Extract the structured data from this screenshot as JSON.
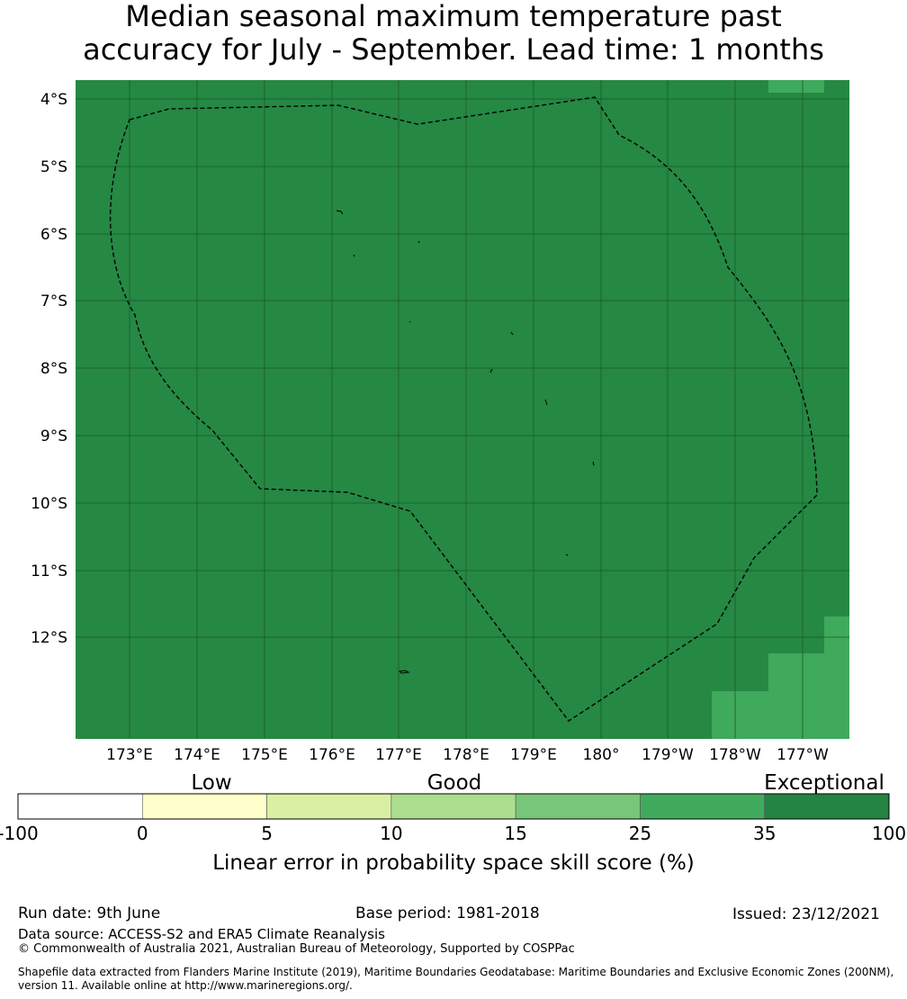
{
  "title": {
    "line1": "Median seasonal maximum temperature past",
    "line2": "accuracy for July - September. Lead time: 1 months"
  },
  "map": {
    "background_color": "#258843",
    "lat_labels": [
      "4°S",
      "5°S",
      "6°S",
      "7°S",
      "8°S",
      "9°S",
      "10°S",
      "11°S",
      "12°S"
    ],
    "lon_labels": [
      "173°E",
      "174°E",
      "175°E",
      "176°E",
      "177°E",
      "178°E",
      "179°E",
      "180°",
      "179°W",
      "178°W",
      "177°W"
    ],
    "boundary_style": "dashed",
    "lighter_cells_color": "#3fa95c"
  },
  "colorbar": {
    "categories": [
      "Low",
      "Good",
      "Exceptional"
    ],
    "ticks": [
      "-100",
      "0",
      "5",
      "10",
      "15",
      "25",
      "35",
      "100"
    ],
    "colors": [
      "#ffffff",
      "#ffffcc",
      "#d9f0a3",
      "#addd8e",
      "#78c679",
      "#41ab5d",
      "#238443"
    ],
    "label": "Linear error in probability space skill score (%)"
  },
  "footer": {
    "run_date": "Run date: 9th June",
    "base_period": "Base period: 1981-2018",
    "issued": "Issued: 23/12/2021",
    "data_source": "Data source: ACCESS-S2 and ERA5 Climate Reanalysis",
    "copyright": "© Commonwealth of Australia 2021, Australian Bureau of Meteorology, Supported by COSPPac",
    "shapefile": "Shapefile data extracted from Flanders Marine Institute (2019), Maritime Boundaries Geodatabase: Maritime Boundaries and Exclusive Economic Zones (200NM), version 11. Available online at http://www.marineregions.org/."
  }
}
